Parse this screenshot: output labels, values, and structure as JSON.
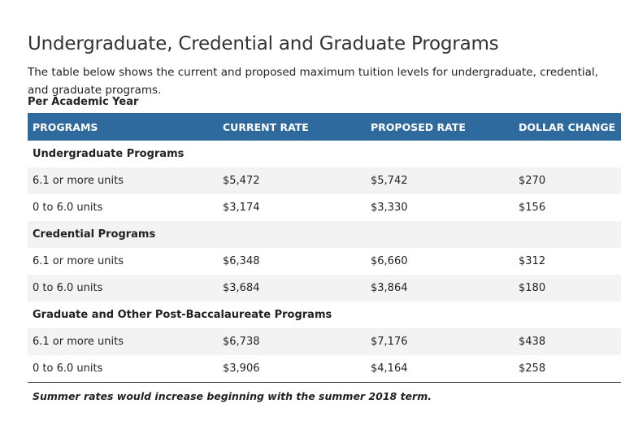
{
  "heading": "Undergraduate, Credential and Graduate Programs",
  "intro": "The table below shows the current and proposed maximum tuition levels for undergraduate, credential, and graduate programs.",
  "caption": "Per Academic Year",
  "table": {
    "headers": [
      "PROGRAMS",
      "CURRENT RATE",
      "PROPOSED RATE",
      "DOLLAR CHANGE"
    ],
    "groups": [
      {
        "name": "Undergraduate Programs",
        "rows": [
          {
            "program": "6.1 or more units",
            "current": "$5,472",
            "proposed": "$5,742",
            "change": "$270"
          },
          {
            "program": "0 to 6.0 units",
            "current": "$3,174",
            "proposed": "$3,330",
            "change": "$156"
          }
        ]
      },
      {
        "name": "Credential Programs",
        "rows": [
          {
            "program": "6.1 or more units",
            "current": "$6,348",
            "proposed": "$6,660",
            "change": "$312"
          },
          {
            "program": "0 to 6.0 units",
            "current": "$3,684",
            "proposed": "$3,864",
            "change": "$180"
          }
        ]
      },
      {
        "name": "Graduate and Other Post-Baccalaureate Programs",
        "rows": [
          {
            "program": "6.1 or more units",
            "current": "$6,738",
            "proposed": "$7,176",
            "change": "$438"
          },
          {
            "program": "0 to 6.0 units",
            "current": "$3,906",
            "proposed": "$4,164",
            "change": "$258"
          }
        ]
      }
    ]
  },
  "note": "Summer rates would increase beginning with the summer 2018 term.",
  "colors": {
    "header_background": "#2e6a9e",
    "header_text": "#ffffff",
    "shaded_row": "#f3f3f3"
  }
}
